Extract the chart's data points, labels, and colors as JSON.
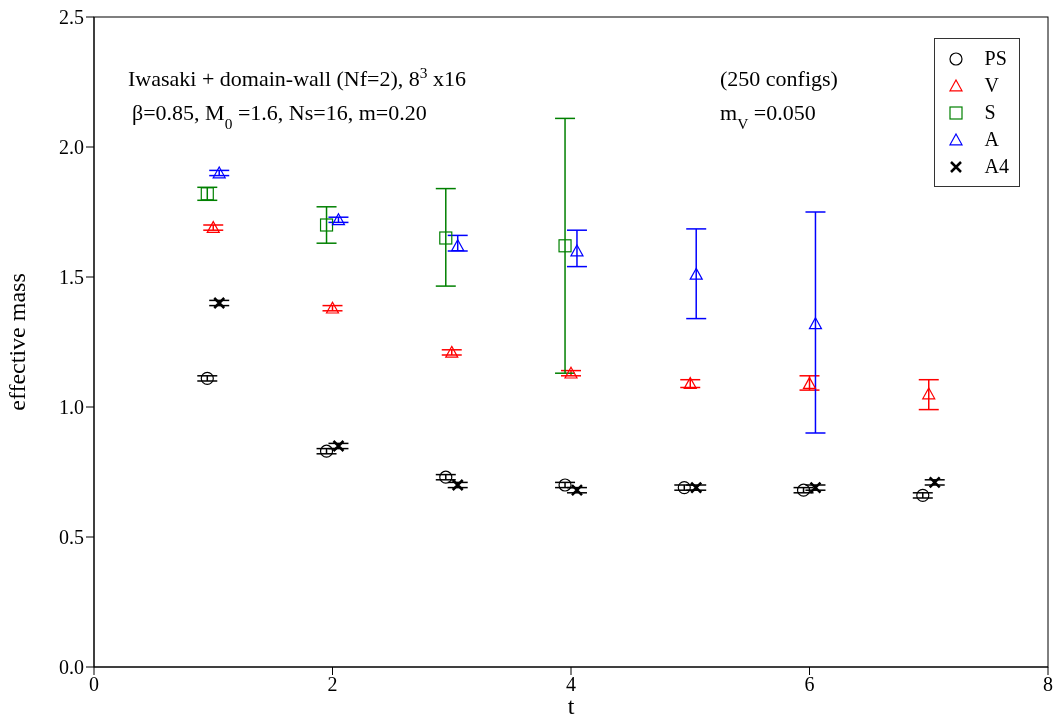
{
  "chart_data": {
    "type": "scatter",
    "xlabel": "t",
    "ylabel": "effective mass",
    "annotations": [
      "Iwasaki + domain-wall (Nf=2), 8$^{3}$ x16",
      "(250 configs)",
      "β=0.85, M$_{0}$ =1.6, Ns=16, m=0.20",
      "m$_{V}$ =0.050"
    ],
    "xlim": [
      0,
      8
    ],
    "xticks": [
      0,
      2,
      4,
      6,
      8
    ],
    "ylim": [
      0,
      2.5
    ],
    "yticks": [
      {
        "value": 0,
        "label": "0.0"
      },
      {
        "value": 0.5,
        "label": "0.5"
      },
      {
        "value": 1,
        "label": "1.0"
      },
      {
        "value": 1.5,
        "label": "1.5"
      },
      {
        "value": 2,
        "label": "2.0"
      },
      {
        "value": 2.5,
        "label": "2.5"
      }
    ],
    "grid": false,
    "legend": "top right",
    "series": [
      {
        "name": "PS",
        "color": "#000000",
        "marker": "circle",
        "x": [
          0.95,
          1.95,
          2.95,
          3.95,
          4.95,
          5.95,
          6.95
        ],
        "values": [
          1.11,
          0.83,
          0.73,
          0.7,
          0.69,
          0.68,
          0.66
        ],
        "errors": [
          0.01,
          0.01,
          0.01,
          0.01,
          0.01,
          0.01,
          0.01
        ]
      },
      {
        "name": "V",
        "color": "#ff0000",
        "marker": "triangle",
        "x": [
          1,
          2,
          3,
          4,
          5,
          6,
          7
        ],
        "values": [
          1.69,
          1.38,
          1.21,
          1.13,
          1.09,
          1.09,
          1.05
        ],
        "errors": [
          0.01,
          0.01,
          0.01,
          0.01,
          0.015,
          [
            1.065,
            1.12
          ],
          [
            0.99,
            1.105
          ]
        ]
      },
      {
        "name": "S",
        "color": "#008000",
        "marker": "square",
        "x": [
          0.95,
          1.95,
          2.95,
          3.95
        ],
        "values": [
          1.82,
          1.7,
          1.65,
          1.62
        ],
        "errors": [
          0.025,
          [
            1.63,
            1.77
          ],
          [
            1.465,
            1.84
          ],
          [
            1.13,
            2.11
          ]
        ]
      },
      {
        "name": "A",
        "color": "#0000ff",
        "marker": "triangle",
        "x": [
          1.05,
          2.05,
          3.05,
          4.05,
          5.05,
          6.05
        ],
        "values": [
          1.9,
          1.72,
          1.62,
          1.6,
          1.51,
          1.32
        ],
        "errors": [
          0.01,
          0.01,
          [
            1.6,
            1.66
          ],
          [
            1.54,
            1.68
          ],
          [
            1.34,
            1.685
          ],
          [
            0.9,
            1.75
          ]
        ]
      },
      {
        "name": "A4",
        "color": "#000000",
        "marker": "cross",
        "x": [
          1.05,
          2.05,
          3.05,
          4.05,
          5.05,
          6.05,
          7.05
        ],
        "values": [
          1.4,
          0.85,
          0.7,
          0.68,
          0.69,
          0.69,
          0.71
        ],
        "errors": [
          0.01,
          0.01,
          0.01,
          0.01,
          0.01,
          0.01,
          0.01
        ]
      }
    ]
  }
}
